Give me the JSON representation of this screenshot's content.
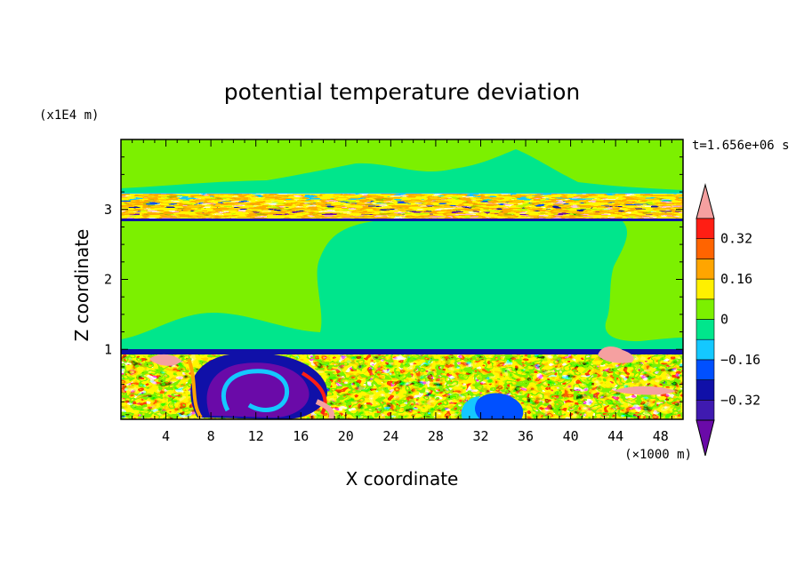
{
  "chart_data": {
    "type": "heatmap",
    "title": "potential temperature deviation",
    "xlabel": "X coordinate",
    "ylabel": "Z coordinate",
    "x_unit": "(×1000 m)",
    "y_unit": "(x1E4 m)",
    "time_label": "t=1.656e+06 s",
    "xlim": [
      0,
      50
    ],
    "ylim": [
      0,
      4
    ],
    "xticks": [
      4,
      8,
      12,
      16,
      20,
      24,
      28,
      32,
      36,
      40,
      44,
      48
    ],
    "yticks": [
      1,
      2,
      3
    ],
    "colorbar": {
      "min": -0.48,
      "max": 0.48,
      "step": 0.08,
      "tick_values": [
        0.32,
        0.16,
        0,
        -0.16,
        -0.32
      ],
      "tick_labels": [
        "0.32",
        "0.16",
        "0",
        "−0.16",
        "−0.32"
      ],
      "colors": [
        "#6a0aa8",
        "#3f1ab0",
        "#1010a8",
        "#0050ff",
        "#14c8ff",
        "#00e68c",
        "#7cf000",
        "#fff000",
        "#ffa500",
        "#ff6400",
        "#ff1e14",
        "#f5a0a0"
      ]
    }
  }
}
